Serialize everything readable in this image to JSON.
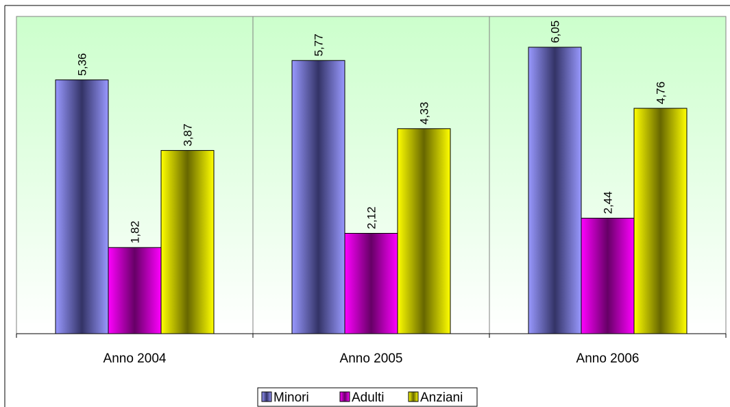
{
  "chart_data": {
    "type": "bar",
    "categories": [
      "Anno 2004",
      "Anno 2005",
      "Anno 2006"
    ],
    "series": [
      {
        "name": "Minori",
        "values": [
          5.36,
          5.77,
          6.05
        ],
        "labels": [
          "5,36",
          "5,77",
          "6,05"
        ],
        "color": "#9999ff"
      },
      {
        "name": "Adulti",
        "values": [
          1.82,
          2.12,
          2.44
        ],
        "labels": [
          "1,82",
          "2,12",
          "2,44"
        ],
        "color": "#ff00ff"
      },
      {
        "name": "Anziani",
        "values": [
          3.87,
          4.33,
          4.76
        ],
        "labels": [
          "3,87",
          "4,33",
          "4,76"
        ],
        "color": "#ffff00"
      }
    ],
    "ylim": [
      0,
      6.7
    ],
    "grid": false,
    "legend_position": "bottom-center",
    "plot_background": "green-to-white gradient"
  }
}
